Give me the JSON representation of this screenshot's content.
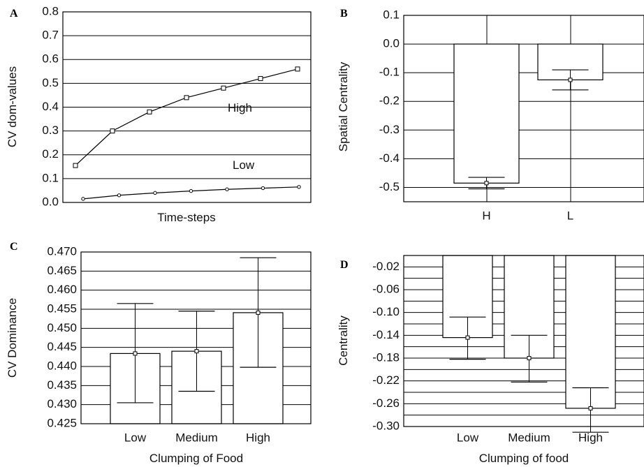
{
  "chart_data": [
    {
      "panel": "A",
      "type": "line",
      "xlabel": "Time-steps",
      "ylabel": "CV dom-values",
      "ylim": [
        0,
        0.8
      ],
      "yticks": [
        "0.0",
        "0.1",
        "0.2",
        "0.3",
        "0.4",
        "0.5",
        "0.6",
        "0.7",
        "0.8"
      ],
      "grid": true,
      "annotations": [
        "High",
        "Low"
      ],
      "series": [
        {
          "values": [
            0.155,
            0.3,
            0.38,
            0.44,
            0.48,
            0.52,
            0.56
          ],
          "marker": "square"
        },
        {
          "values": [
            0.015,
            0.03,
            0.04,
            0.048,
            0.055,
            0.06,
            0.065
          ],
          "marker": "diamond"
        }
      ]
    },
    {
      "panel": "B",
      "type": "bar",
      "xlabel": "",
      "ylabel": "Spatial Centrality",
      "ylim": [
        -0.55,
        0.1
      ],
      "yticks": [
        "0.1",
        "0.0",
        "-0.1",
        "-0.2",
        "-0.3",
        "-0.4",
        "-0.5"
      ],
      "grid": true,
      "categories": [
        "H",
        "L"
      ],
      "values": [
        -0.485,
        -0.125
      ],
      "error_low": [
        -0.505,
        -0.16
      ],
      "error_high": [
        -0.465,
        -0.09
      ]
    },
    {
      "panel": "C",
      "type": "bar",
      "xlabel": "Clumping of Food",
      "ylabel": "CV Dominance",
      "ylim": [
        0.425,
        0.47
      ],
      "yticks": [
        "0.470",
        "0.465",
        "0.460",
        "0.455",
        "0.450",
        "0.445",
        "0.440",
        "0.435",
        "0.430",
        "0.425"
      ],
      "grid": true,
      "categories": [
        "Low",
        "Medium",
        "High"
      ],
      "values": [
        0.4434,
        0.444,
        0.4541
      ],
      "error_low": [
        0.4305,
        0.4335,
        0.4398
      ],
      "error_high": [
        0.4565,
        0.4545,
        0.4685
      ]
    },
    {
      "panel": "D",
      "type": "bar",
      "xlabel": "Clumping of food",
      "ylabel": "Centrality",
      "ylim": [
        -0.3,
        0.0
      ],
      "yticks": [
        "-0.02",
        "-0.06",
        "-0.10",
        "-0.14",
        "-0.18",
        "-0.22",
        "-0.26",
        "-0.30"
      ],
      "grid": true,
      "categories": [
        "Low",
        "Medium",
        "High"
      ],
      "values": [
        -0.144,
        -0.18,
        -0.268
      ],
      "error_low": [
        -0.182,
        -0.222,
        -0.31
      ],
      "error_high": [
        -0.108,
        -0.14,
        -0.232
      ]
    }
  ]
}
